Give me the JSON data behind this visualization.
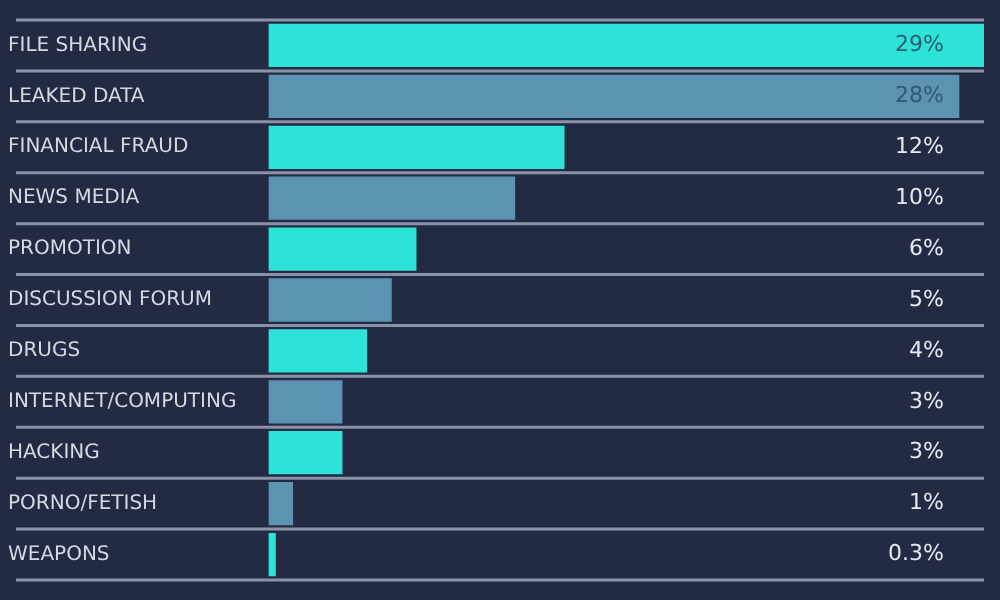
{
  "chart_data": {
    "type": "bar",
    "orientation": "horizontal",
    "categories": [
      "FILE SHARING",
      "LEAKED DATA",
      "FINANCIAL FRAUD",
      "NEWS MEDIA",
      "PROMOTION",
      "DISCUSSION FORUM",
      "DRUGS",
      "INTERNET/COMPUTING",
      "HACKING",
      "PORNO/FETISH",
      "WEAPONS"
    ],
    "values": [
      29,
      28,
      12,
      10,
      6,
      5,
      4,
      3,
      3,
      1,
      0.3
    ],
    "colors": [
      "#2de3d8",
      "#5b93b0",
      "#2de3d8",
      "#5b93b0",
      "#2de3d8",
      "#5b93b0",
      "#2de3d8",
      "#5b93b0",
      "#2de3d8",
      "#5b93b0",
      "#2de3d8"
    ],
    "value_labels": [
      "29%",
      "28%",
      "12%",
      "10%",
      "6%",
      "5%",
      "4%",
      "3%",
      "3%",
      "1%",
      "0.3%"
    ],
    "xlim": [
      0,
      29
    ],
    "tick_labels": "y",
    "grid": "y",
    "legend": false
  }
}
